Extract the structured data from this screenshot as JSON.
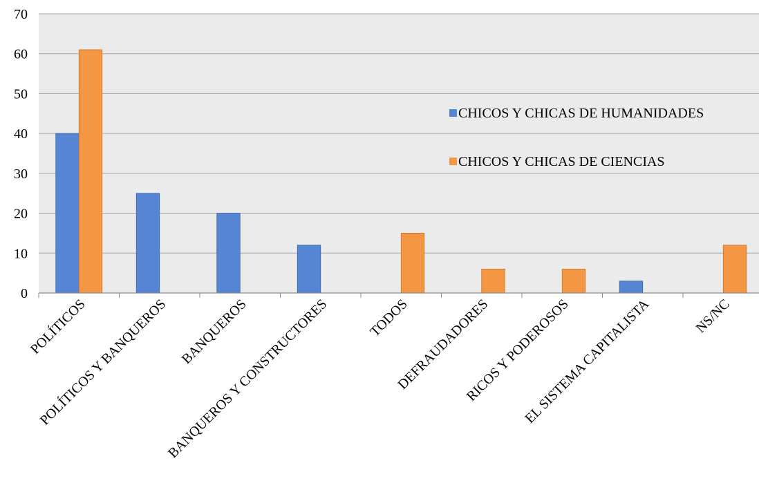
{
  "chart_data": {
    "type": "bar",
    "categories": [
      "POLÍTICOS",
      "POLÍTICOS Y BANQUEROS",
      "BANQUEROS",
      "BANQUEROS Y CONSTRUCTORES",
      "TODOS",
      "DEFRAUDADORES",
      "RICOS Y PODEROSOS",
      "EL SISTEMA CAPITALISTA",
      "NS/NC"
    ],
    "series": [
      {
        "name": "CHICOS Y CHICAS DE HUMANIDADES",
        "color": "#5585d3",
        "values": [
          40,
          25,
          20,
          12,
          0,
          0,
          0,
          3,
          0
        ]
      },
      {
        "name": "CHICOS Y CHICAS DE CIENCIAS",
        "color": "#f39744",
        "values": [
          61,
          0,
          0,
          0,
          15,
          6,
          6,
          0,
          12
        ]
      }
    ],
    "y_ticks": [
      0,
      10,
      20,
      30,
      40,
      50,
      60,
      70
    ],
    "ylim": [
      0,
      70
    ],
    "grid": true,
    "plot_background": "#ebebeb",
    "legend_position": "right, inside plot"
  }
}
